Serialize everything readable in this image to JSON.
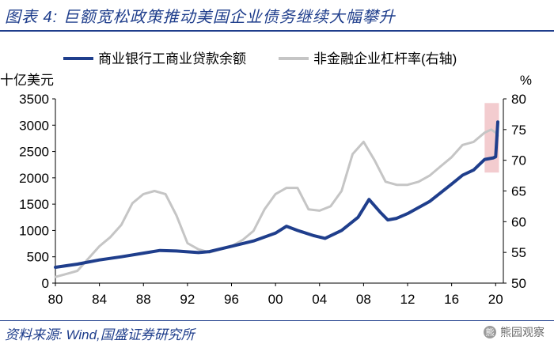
{
  "header": {
    "title": "图表 4:  巨额宽松政策推动美国企业债务继续大幅攀升"
  },
  "footer": {
    "source": "资料来源:  Wind,国盛证券研究所"
  },
  "watermark": {
    "text": "熊园观察",
    "icon": "bear-logo-icon",
    "badge": "熊"
  },
  "chart_data": {
    "type": "line",
    "title": "",
    "xlabel": "",
    "ylabel_left_unit": "十亿美元",
    "ylabel_right_unit": "%",
    "x_tick_labels": [
      "80",
      "84",
      "88",
      "92",
      "96",
      "00",
      "04",
      "08",
      "12",
      "16",
      "20"
    ],
    "x_tick_years": [
      1980,
      1984,
      1988,
      1992,
      1996,
      2000,
      2004,
      2008,
      2012,
      2016,
      2020
    ],
    "xlim": [
      1980,
      2020.7
    ],
    "ylim_left": [
      0,
      3500
    ],
    "ylim_right": [
      50,
      80
    ],
    "y_left_ticks": [
      0,
      500,
      1000,
      1500,
      2000,
      2500,
      3000,
      3500
    ],
    "y_right_ticks": [
      50,
      55,
      60,
      65,
      70,
      75,
      80
    ],
    "legend_position": "top",
    "grid": false,
    "highlight": {
      "x_range": [
        2019.0,
        2020.3
      ],
      "y_range_left": [
        2100,
        3420
      ],
      "color": "#e9a3a8"
    },
    "series": [
      {
        "name": "商业银行工商业贷款余额",
        "axis": "left",
        "color": "#1f3e8c",
        "x": [
          1980,
          1982,
          1984,
          1986,
          1988,
          1989.5,
          1991,
          1993,
          1994,
          1996,
          1998,
          2000,
          2001,
          2002,
          2003.5,
          2004.5,
          2006,
          2007.5,
          2008.5,
          2009.5,
          2010.2,
          2011,
          2012,
          2014,
          2016,
          2017,
          2018,
          2019,
          2019.8,
          2020,
          2020.2
        ],
        "y": [
          300,
          360,
          440,
          500,
          570,
          620,
          610,
          580,
          600,
          700,
          800,
          950,
          1080,
          1000,
          900,
          850,
          1000,
          1250,
          1590,
          1350,
          1200,
          1230,
          1320,
          1550,
          1880,
          2050,
          2150,
          2350,
          2380,
          2400,
          3060
        ]
      },
      {
        "name": "非金融企业杠杆率(右轴)",
        "axis": "right",
        "color": "#c5c5c5",
        "x": [
          1980,
          1981,
          1982,
          1983,
          1984,
          1985,
          1986,
          1987,
          1988,
          1989,
          1990,
          1991,
          1992,
          1993,
          1994,
          1995,
          1996,
          1997,
          1998,
          1999,
          2000,
          2001,
          2002,
          2003,
          2004,
          2005,
          2006,
          2007,
          2008,
          2009,
          2010,
          2011,
          2012,
          2013,
          2014,
          2015,
          2016,
          2017,
          2018,
          2019,
          2019.6,
          2020,
          2020.2
        ],
        "y": [
          51,
          51.5,
          52,
          54,
          56,
          57.5,
          59.5,
          63,
          64.5,
          65,
          64.5,
          61,
          56.5,
          55.5,
          55,
          55.5,
          56,
          57,
          58.5,
          62,
          64.5,
          65.5,
          65.5,
          62,
          61.8,
          62.5,
          65,
          71,
          73,
          70,
          66.5,
          66,
          66,
          66.5,
          67.5,
          69,
          70.5,
          72.5,
          73,
          74.5,
          75,
          74.5,
          74
        ]
      }
    ]
  }
}
